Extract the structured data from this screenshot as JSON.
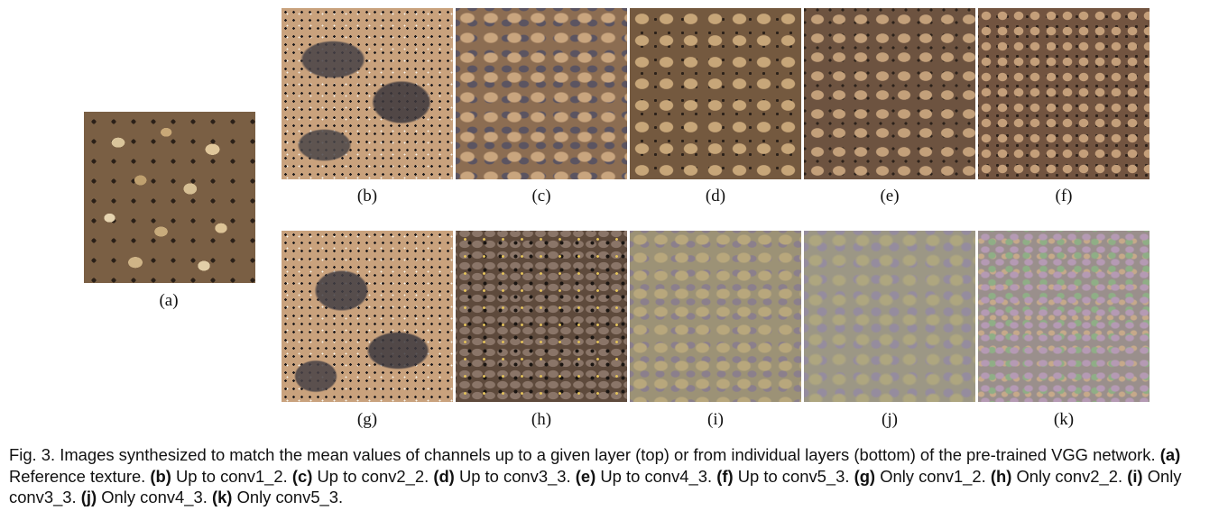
{
  "figure": {
    "panels": [
      {
        "id": "a",
        "label": "(a)",
        "texture": "reference-rock-texture"
      },
      {
        "id": "b",
        "label": "(b)",
        "texture": "synthesized-conv1_2"
      },
      {
        "id": "c",
        "label": "(c)",
        "texture": "synthesized-conv2_2"
      },
      {
        "id": "d",
        "label": "(d)",
        "texture": "synthesized-conv3_3"
      },
      {
        "id": "e",
        "label": "(e)",
        "texture": "synthesized-conv4_3"
      },
      {
        "id": "f",
        "label": "(f)",
        "texture": "synthesized-conv5_3"
      },
      {
        "id": "g",
        "label": "(g)",
        "texture": "only-conv1_2"
      },
      {
        "id": "h",
        "label": "(h)",
        "texture": "only-conv2_2"
      },
      {
        "id": "i",
        "label": "(i)",
        "texture": "only-conv3_3"
      },
      {
        "id": "j",
        "label": "(j)",
        "texture": "only-conv4_3"
      },
      {
        "id": "k",
        "label": "(k)",
        "texture": "only-conv5_3"
      }
    ]
  },
  "caption": {
    "intro": "Fig. 3. Images synthesized to match the mean values of channels up to a given layer (top) or from individual layers (bottom) of the pre-trained VGG network.",
    "items": [
      {
        "tag": "(a)",
        "text": "Reference texture."
      },
      {
        "tag": "(b)",
        "text": "Up to conv1_2."
      },
      {
        "tag": "(c)",
        "text": "Up to conv2_2."
      },
      {
        "tag": "(d)",
        "text": "Up to conv3_3."
      },
      {
        "tag": "(e)",
        "text": "Up to conv4_3."
      },
      {
        "tag": "(f)",
        "text": "Up to conv5_3."
      },
      {
        "tag": "(g)",
        "text": "Only conv1_2."
      },
      {
        "tag": "(h)",
        "text": "Only conv2_2."
      },
      {
        "tag": "(i)",
        "text": "Only conv3_3."
      },
      {
        "tag": "(j)",
        "text": "Only conv4_3."
      },
      {
        "tag": "(k)",
        "text": "Only conv5_3."
      }
    ]
  }
}
